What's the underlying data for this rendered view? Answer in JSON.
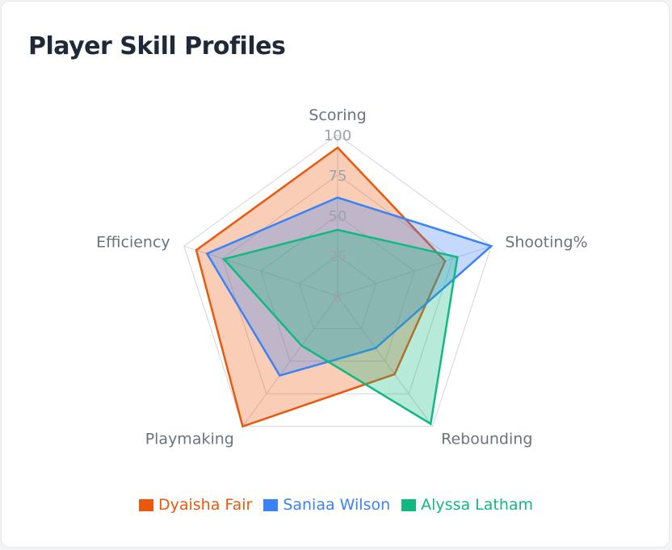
{
  "page": {
    "title": "Player Skill Profiles"
  },
  "chart_data": {
    "type": "radar",
    "axes": [
      "Scoring",
      "Shooting%",
      "Rebounding",
      "Playmaking",
      "Efficiency"
    ],
    "rlim": [
      0,
      100
    ],
    "rticks": [
      "0",
      "25",
      "50",
      "75",
      "100"
    ],
    "grid": true,
    "legend_position": "bottom",
    "series": [
      {
        "name": "Dyaisha Fair",
        "color": "#ea580c",
        "values": [
          92,
          70,
          60,
          100,
          92
        ]
      },
      {
        "name": "Saniaa Wilson",
        "color": "#3b82f6",
        "values": [
          61,
          100,
          40,
          61,
          85
        ]
      },
      {
        "name": "Alyssa Latham",
        "color": "#10b981",
        "values": [
          41,
          78,
          98,
          38,
          74
        ]
      }
    ]
  }
}
